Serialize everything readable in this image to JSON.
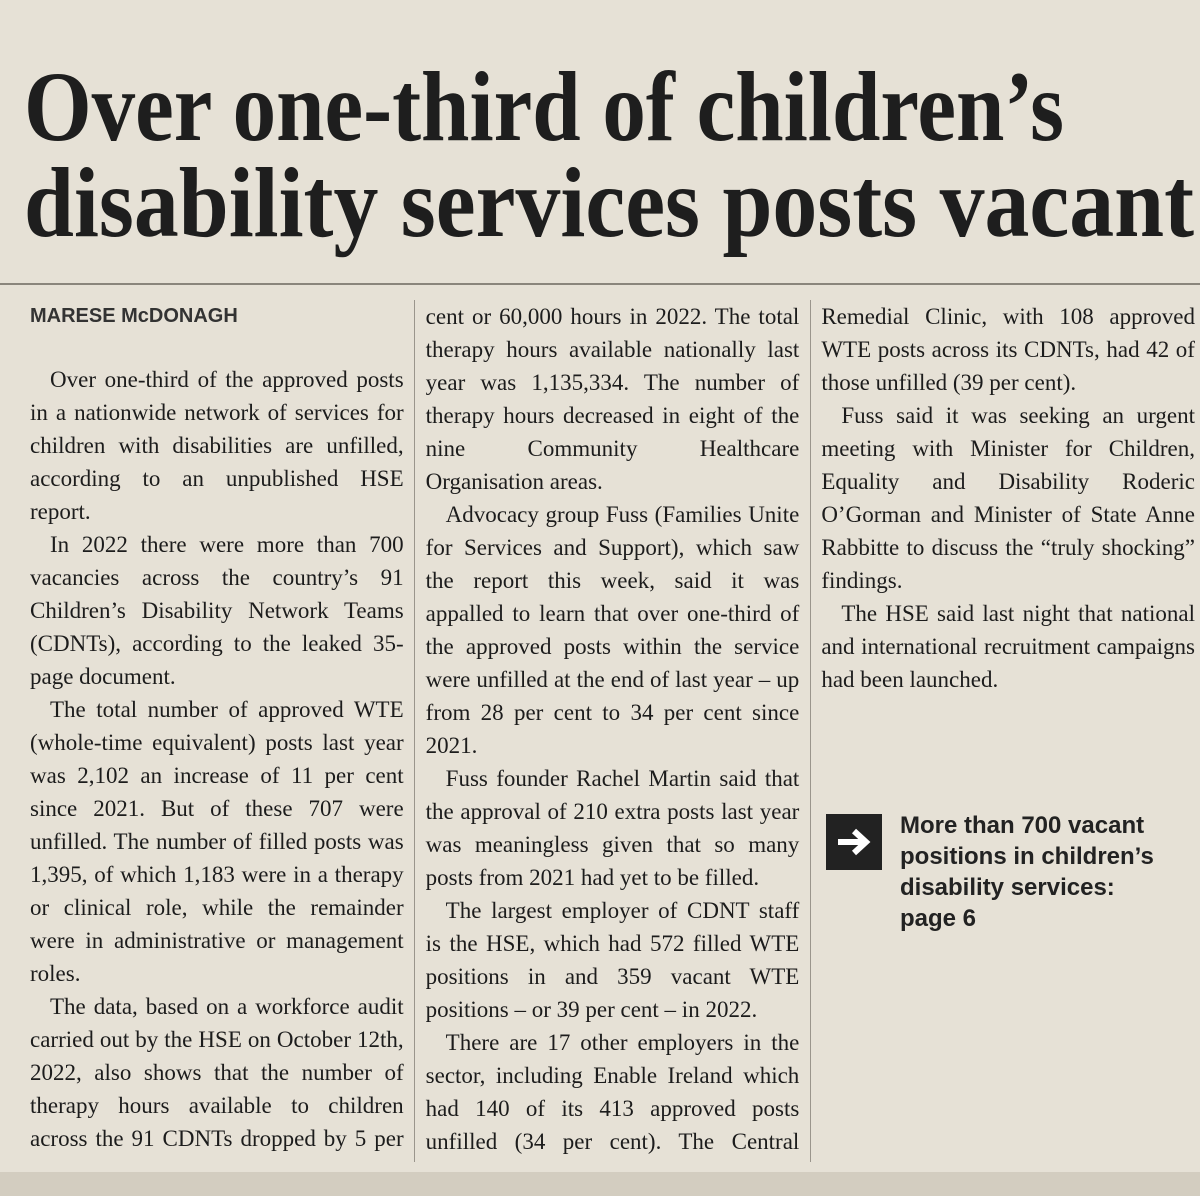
{
  "headline": [
    "Over one-third of children’s",
    "disability services posts vacant"
  ],
  "byline": "MARESE McDONAGH",
  "paragraphs": [
    "Over one-third of the approved posts in a nationwide network of services for children with disabilities are unfilled, according to an unpublished HSE report.",
    "In 2022 there were more than 700 vacancies across the country’s 91 Children’s Disability Network Teams (CDNTs), according to the leaked 35-page document.",
    "The total number of approved WTE (whole-time equivalent) posts last year was 2,102 an increase of 11 per cent since 2021. But of these 707 were unfilled. The number of filled posts was 1,395, of which 1,183 were in a therapy or clinical role, while the remainder were in administrative or management roles.",
    "The data, based on a workforce audit carried out by the HSE on October 12th, 2022, also shows that the number of therapy hours available to children across the 91 CDNTs dropped by 5 per cent or 60,000 hours in 2022. The total therapy hours available nationally last year was 1,135,334. The number of therapy hours decreased in eight of the nine Community Healthcare Organisation areas.",
    "Advocacy group Fuss (Families Unite for Services and Support), which saw the report this week, said it was appalled to learn that over one-third of the approved posts within the service were unfilled at the end of last year – up from 28 per cent to 34 per cent since 2021.",
    "Fuss founder Rachel Martin said that the approval of 210 extra posts last year was meaningless given that so many posts from 2021 had yet to be filled.",
    "The largest employer of CDNT staff is the HSE, which had 572 filled WTE positions in and 359 vacant WTE positions – or 39 per cent – in 2022.",
    "There are 17 other employers in the sector, including Enable Ireland which had 140 of its 413 approved posts unfilled (34 per cent). The Central Remedial Clinic, with 108 approved WTE posts across its CDNTs, had 42 of those unfilled (39 per cent).",
    "Fuss said it was seeking an urgent meeting with Minister for Children, Equality and Disability Roderic O’Gorman and Minister of State Anne Rabbitte to discuss the “truly shocking” findings.",
    "The HSE said last night that national and international recruitment campaigns had been launched."
  ],
  "refer": "More than 700 vacant positions in children’s disability services: page 6"
}
